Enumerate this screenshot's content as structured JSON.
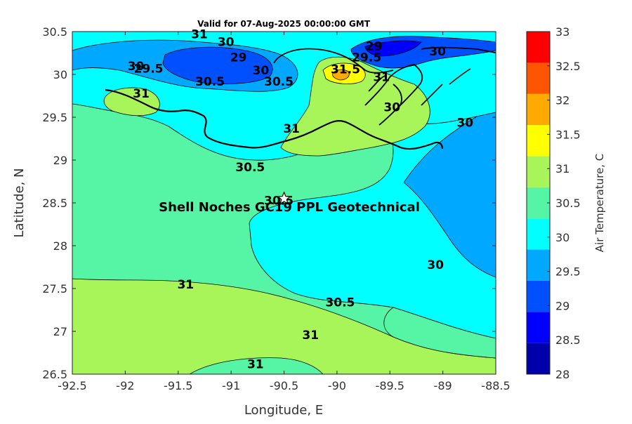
{
  "title": "Valid for 07-Aug-2025 00:00:00 GMT",
  "chart_data": {
    "type": "heatmap",
    "subtype": "filled contour map",
    "title": "Valid for 07-Aug-2025 00:00:00 GMT",
    "xlabel": "Longitude, E",
    "ylabel": "Latitude, N",
    "xlim": [
      -92.5,
      -88.5
    ],
    "ylim": [
      26.5,
      30.5
    ],
    "x_ticks": [
      "-92.5",
      "-92",
      "-91.5",
      "-91",
      "-90.5",
      "-90",
      "-89.5",
      "-89",
      "-88.5"
    ],
    "y_ticks": [
      "30.5",
      "30",
      "29.5",
      "29",
      "28.5",
      "28",
      "27.5",
      "27",
      "26.5"
    ],
    "colorbar": {
      "label": "Air Temperature, C",
      "ticks": [
        "33",
        "32.5",
        "32",
        "31.5",
        "31",
        "30.5",
        "30",
        "29.5",
        "29",
        "28.5",
        "28"
      ],
      "levels": [
        28,
        28.5,
        29,
        29.5,
        30,
        30.5,
        31,
        31.5,
        32,
        32.5,
        33
      ],
      "colors": [
        "#0000aa",
        "#0000ff",
        "#0050ff",
        "#00a8ff",
        "#00ffff",
        "#55f5a5",
        "#a8f55a",
        "#ffff00",
        "#ffaa00",
        "#ff5500",
        "#ff0000"
      ]
    },
    "contour_labels": [
      {
        "text": "31",
        "lon": -91.43,
        "lat": 27.55
      },
      {
        "text": "31",
        "lon": -90.77,
        "lat": 26.62
      },
      {
        "text": "31",
        "lon": -90.25,
        "lat": 26.96
      },
      {
        "text": "30.5",
        "lon": -89.97,
        "lat": 27.34
      },
      {
        "text": "30",
        "lon": -89.07,
        "lat": 27.78
      },
      {
        "text": "30",
        "lon": -88.79,
        "lat": 29.44
      },
      {
        "text": "30.5",
        "lon": -91.2,
        "lat": 29.92
      },
      {
        "text": "30",
        "lon": -91.9,
        "lat": 30.1
      },
      {
        "text": "29.5",
        "lon": -91.78,
        "lat": 30.07
      },
      {
        "text": "31",
        "lon": -91.3,
        "lat": 30.47
      },
      {
        "text": "30",
        "lon": -91.05,
        "lat": 30.38
      },
      {
        "text": "29",
        "lon": -90.93,
        "lat": 30.2
      },
      {
        "text": "30.5",
        "lon": -90.82,
        "lat": 28.92
      },
      {
        "text": "30.5",
        "lon": -90.55,
        "lat": 28.53
      },
      {
        "text": "30.5",
        "lon": -90.55,
        "lat": 29.92
      },
      {
        "text": "30",
        "lon": -90.72,
        "lat": 30.05
      },
      {
        "text": "31",
        "lon": -90.43,
        "lat": 29.37
      },
      {
        "text": "31.5",
        "lon": -89.92,
        "lat": 30.06
      },
      {
        "text": "29",
        "lon": -89.65,
        "lat": 30.33
      },
      {
        "text": "29.5",
        "lon": -89.72,
        "lat": 30.2
      },
      {
        "text": "31",
        "lon": -89.58,
        "lat": 29.97
      },
      {
        "text": "30",
        "lon": -89.48,
        "lat": 29.62
      },
      {
        "text": "30",
        "lon": -89.05,
        "lat": 30.27
      },
      {
        "text": "31",
        "lon": -91.85,
        "lat": 29.78
      }
    ],
    "annotation": {
      "text": "Shell Noches   GC19 PPL  Geotechnical",
      "marker": "star",
      "marker_lon": -90.5,
      "marker_lat": 28.55
    }
  }
}
